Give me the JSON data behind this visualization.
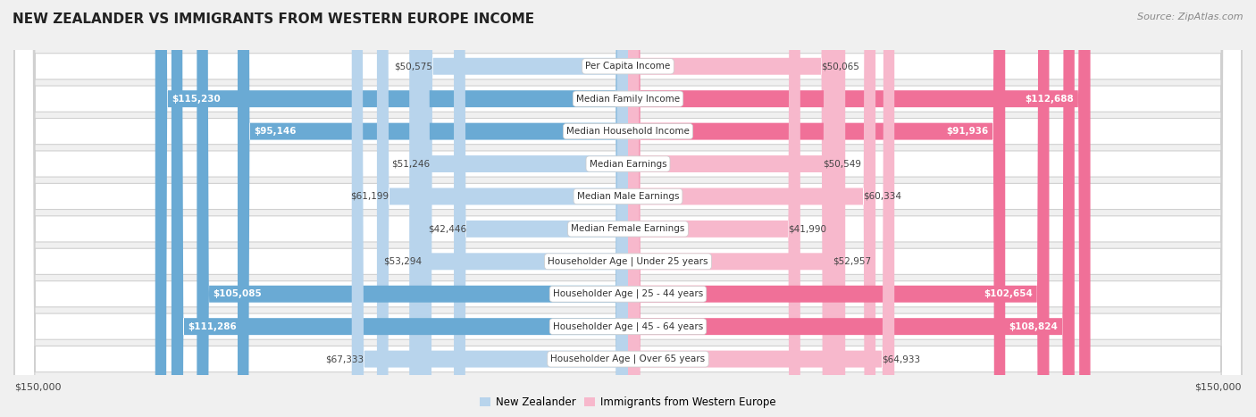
{
  "title": "NEW ZEALANDER VS IMMIGRANTS FROM WESTERN EUROPE INCOME",
  "source": "Source: ZipAtlas.com",
  "categories": [
    "Per Capita Income",
    "Median Family Income",
    "Median Household Income",
    "Median Earnings",
    "Median Male Earnings",
    "Median Female Earnings",
    "Householder Age | Under 25 years",
    "Householder Age | 25 - 44 years",
    "Householder Age | 45 - 64 years",
    "Householder Age | Over 65 years"
  ],
  "nz_values": [
    50575,
    115230,
    95146,
    51246,
    61199,
    42446,
    53294,
    105085,
    111286,
    67333
  ],
  "imm_values": [
    50065,
    112688,
    91936,
    50549,
    60334,
    41990,
    52957,
    102654,
    108824,
    64933
  ],
  "nz_labels": [
    "$50,575",
    "$115,230",
    "$95,146",
    "$51,246",
    "$61,199",
    "$42,446",
    "$53,294",
    "$105,085",
    "$111,286",
    "$67,333"
  ],
  "imm_labels": [
    "$50,065",
    "$112,688",
    "$91,936",
    "$50,549",
    "$60,334",
    "$41,990",
    "$52,957",
    "$102,654",
    "$108,824",
    "$64,933"
  ],
  "nz_color_light": "#b8d4ec",
  "nz_color_dark": "#6aaad4",
  "imm_color_light": "#f7b8cc",
  "imm_color_dark": "#f07098",
  "nz_label_inside": [
    false,
    true,
    true,
    false,
    false,
    false,
    false,
    true,
    true,
    false
  ],
  "imm_label_inside": [
    false,
    true,
    true,
    false,
    false,
    false,
    false,
    true,
    true,
    false
  ],
  "max_val": 150000,
  "xlabel_left": "$150,000",
  "xlabel_right": "$150,000",
  "bg_color": "#f0f0f0",
  "row_bg": "#ffffff",
  "row_border": "#d0d0d0",
  "legend_nz": "New Zealander",
  "legend_imm": "Immigrants from Western Europe",
  "title_fontsize": 11,
  "source_fontsize": 8,
  "label_fontsize": 7.5,
  "cat_fontsize": 7.5
}
